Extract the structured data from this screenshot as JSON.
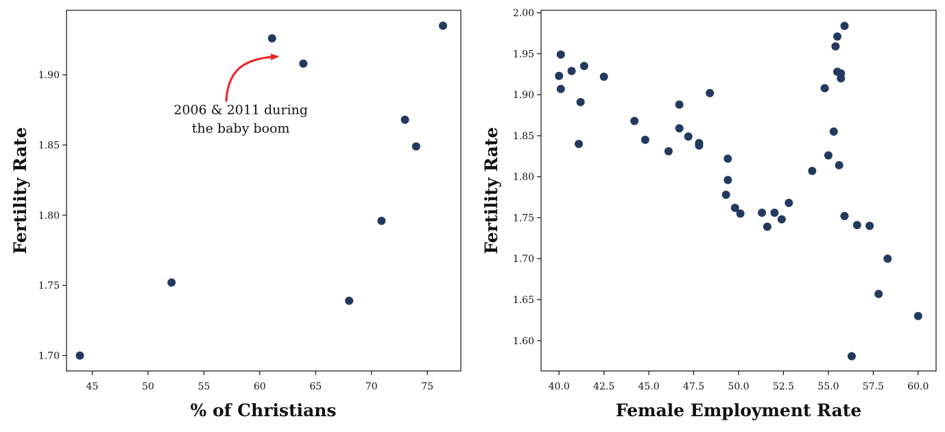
{
  "chart_data": [
    {
      "type": "scatter",
      "xlabel": "% of Christians",
      "ylabel": "Fertility Rate",
      "xlim": [
        42.7,
        78.0
      ],
      "ylim": [
        1.689,
        1.946
      ],
      "xticks": [
        45,
        50,
        55,
        60,
        65,
        70,
        75
      ],
      "yticks": [
        1.7,
        1.75,
        1.8,
        1.85,
        1.9
      ],
      "ytick_decimals": 2,
      "xtick_decimals": 0,
      "grid": false,
      "point_color": "#233a5e",
      "points": [
        {
          "x": 43.9,
          "y": 1.7
        },
        {
          "x": 52.1,
          "y": 1.752
        },
        {
          "x": 61.1,
          "y": 1.926
        },
        {
          "x": 63.9,
          "y": 1.908
        },
        {
          "x": 68.0,
          "y": 1.739
        },
        {
          "x": 70.9,
          "y": 1.796
        },
        {
          "x": 73.0,
          "y": 1.868
        },
        {
          "x": 74.0,
          "y": 1.849
        },
        {
          "x": 76.4,
          "y": 1.935
        }
      ],
      "annotation": {
        "lines": [
          "2006 & 2011 during",
          "the baby boom"
        ],
        "text_at": {
          "x": 58.3,
          "y": 1.872
        },
        "arrow_from": {
          "x": 57.0,
          "y": 1.881
        },
        "arrow_to": {
          "x": 61.6,
          "y": 1.913
        },
        "color": "#ee2222"
      }
    },
    {
      "type": "scatter",
      "xlabel": "Female Employment Rate",
      "ylabel": "Fertility Rate",
      "xlim": [
        39.0,
        61.0
      ],
      "ylim": [
        1.563,
        2.003
      ],
      "xticks": [
        40.0,
        42.5,
        45.0,
        47.5,
        50.0,
        52.5,
        55.0,
        57.5,
        60.0
      ],
      "yticks": [
        1.6,
        1.65,
        1.7,
        1.75,
        1.8,
        1.85,
        1.9,
        1.95,
        2.0
      ],
      "ytick_decimals": 2,
      "xtick_decimals": 1,
      "grid": false,
      "point_color": "#233a5e",
      "points": [
        {
          "x": 40.0,
          "y": 1.923
        },
        {
          "x": 40.1,
          "y": 1.949
        },
        {
          "x": 40.1,
          "y": 1.907
        },
        {
          "x": 40.7,
          "y": 1.929
        },
        {
          "x": 41.1,
          "y": 1.84
        },
        {
          "x": 41.2,
          "y": 1.891
        },
        {
          "x": 41.4,
          "y": 1.935
        },
        {
          "x": 42.5,
          "y": 1.922
        },
        {
          "x": 44.2,
          "y": 1.868
        },
        {
          "x": 44.8,
          "y": 1.845
        },
        {
          "x": 46.1,
          "y": 1.831
        },
        {
          "x": 46.7,
          "y": 1.859
        },
        {
          "x": 46.7,
          "y": 1.888
        },
        {
          "x": 47.2,
          "y": 1.849
        },
        {
          "x": 47.8,
          "y": 1.841
        },
        {
          "x": 47.8,
          "y": 1.838
        },
        {
          "x": 48.4,
          "y": 1.902
        },
        {
          "x": 49.3,
          "y": 1.778
        },
        {
          "x": 49.4,
          "y": 1.796
        },
        {
          "x": 49.4,
          "y": 1.822
        },
        {
          "x": 49.8,
          "y": 1.762
        },
        {
          "x": 50.1,
          "y": 1.755
        },
        {
          "x": 51.3,
          "y": 1.756
        },
        {
          "x": 51.6,
          "y": 1.739
        },
        {
          "x": 52.0,
          "y": 1.756
        },
        {
          "x": 52.4,
          "y": 1.748
        },
        {
          "x": 52.8,
          "y": 1.768
        },
        {
          "x": 54.1,
          "y": 1.807
        },
        {
          "x": 54.8,
          "y": 1.908
        },
        {
          "x": 55.0,
          "y": 1.826
        },
        {
          "x": 55.3,
          "y": 1.855
        },
        {
          "x": 55.4,
          "y": 1.959
        },
        {
          "x": 55.5,
          "y": 1.971
        },
        {
          "x": 55.5,
          "y": 1.928
        },
        {
          "x": 55.6,
          "y": 1.814
        },
        {
          "x": 55.7,
          "y": 1.92
        },
        {
          "x": 55.7,
          "y": 1.926
        },
        {
          "x": 55.9,
          "y": 1.984
        },
        {
          "x": 55.9,
          "y": 1.752
        },
        {
          "x": 56.3,
          "y": 1.581
        },
        {
          "x": 56.6,
          "y": 1.741
        },
        {
          "x": 57.3,
          "y": 1.74
        },
        {
          "x": 57.8,
          "y": 1.657
        },
        {
          "x": 58.3,
          "y": 1.7
        },
        {
          "x": 60.0,
          "y": 1.63
        }
      ]
    }
  ]
}
